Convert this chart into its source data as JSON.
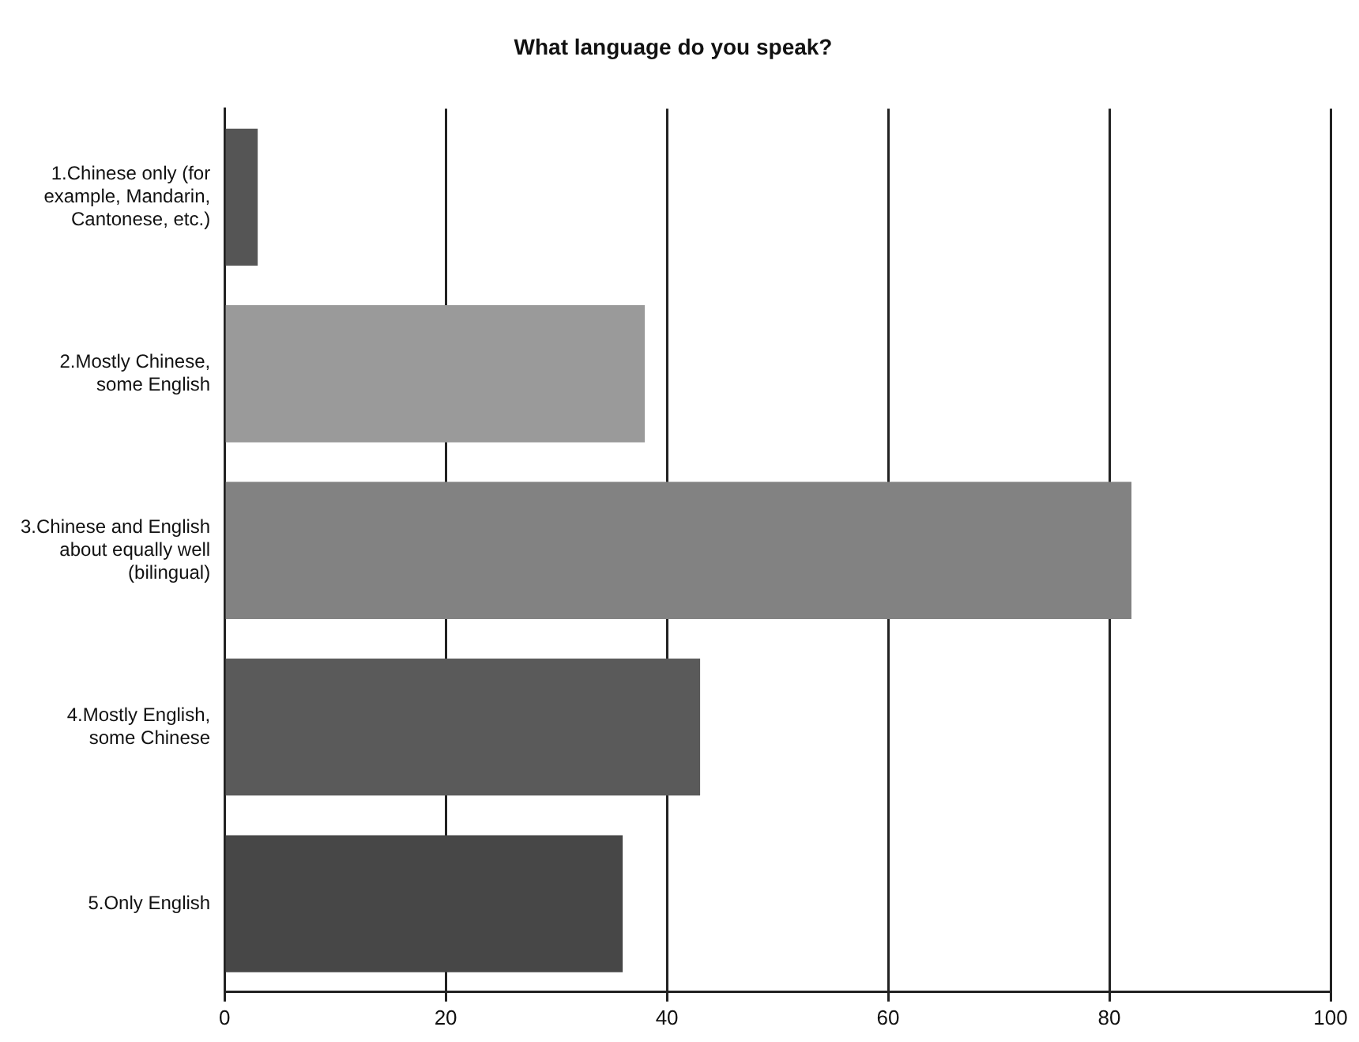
{
  "chart_data": {
    "type": "bar",
    "orientation": "horizontal",
    "title": "What language do you speak?",
    "categories": [
      "1.Chinese only (for example, Mandarin, Cantonese, etc.)",
      "2.Mostly Chinese, some English",
      "3.Chinese and English about equally well (bilingual)",
      "4.Mostly English, some Chinese",
      "5.Only English"
    ],
    "values": [
      3,
      38,
      82,
      43,
      36
    ],
    "colors": [
      "#555555",
      "#9a9a9a",
      "#828282",
      "#5a5a5a",
      "#474747"
    ],
    "xlim": [
      0,
      100
    ],
    "xticks": [
      0,
      20,
      40,
      60,
      80,
      100
    ],
    "grid": "x",
    "legend": false
  }
}
